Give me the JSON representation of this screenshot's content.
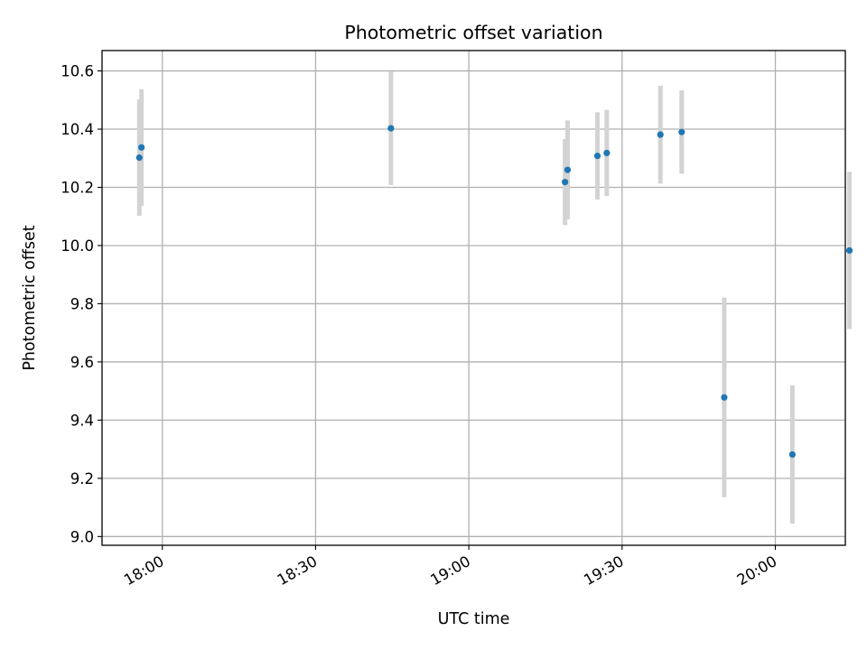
{
  "chart_data": {
    "type": "scatter",
    "title": "Photometric offset variation",
    "xlabel": "UTC time",
    "ylabel": "Photometric offset",
    "xlim": [
      "17:48:12",
      "20:13:42"
    ],
    "ylim": [
      8.97,
      10.67
    ],
    "grid": true,
    "x_ticks": [
      "18:00",
      "18:30",
      "19:00",
      "19:30",
      "20:00"
    ],
    "y_ticks": [
      "9.0",
      "9.2",
      "9.4",
      "9.6",
      "9.8",
      "10.0",
      "10.2",
      "10.4",
      "10.6"
    ],
    "series": [
      {
        "marker_color": "#1f77b4",
        "errorbar_color": "#d3d3d3",
        "points": [
          {
            "x": "17:55:30",
            "y": 10.302,
            "yerr": 0.2
          },
          {
            "x": "17:55:55",
            "y": 10.337,
            "yerr": 0.2
          },
          {
            "x": "18:44:45",
            "y": 10.403,
            "yerr": 0.195
          },
          {
            "x": "19:18:50",
            "y": 10.218,
            "yerr": 0.148
          },
          {
            "x": "19:19:20",
            "y": 10.26,
            "yerr": 0.17
          },
          {
            "x": "19:25:10",
            "y": 10.308,
            "yerr": 0.15
          },
          {
            "x": "19:27:00",
            "y": 10.318,
            "yerr": 0.148
          },
          {
            "x": "19:37:30",
            "y": 10.381,
            "yerr": 0.168
          },
          {
            "x": "19:41:40",
            "y": 10.39,
            "yerr": 0.143
          },
          {
            "x": "19:50:00",
            "y": 9.478,
            "yerr": 0.343
          },
          {
            "x": "20:03:20",
            "y": 9.282,
            "yerr": 0.238
          },
          {
            "x": "20:14:30",
            "y": 9.983,
            "yerr": 0.27
          }
        ]
      }
    ]
  }
}
